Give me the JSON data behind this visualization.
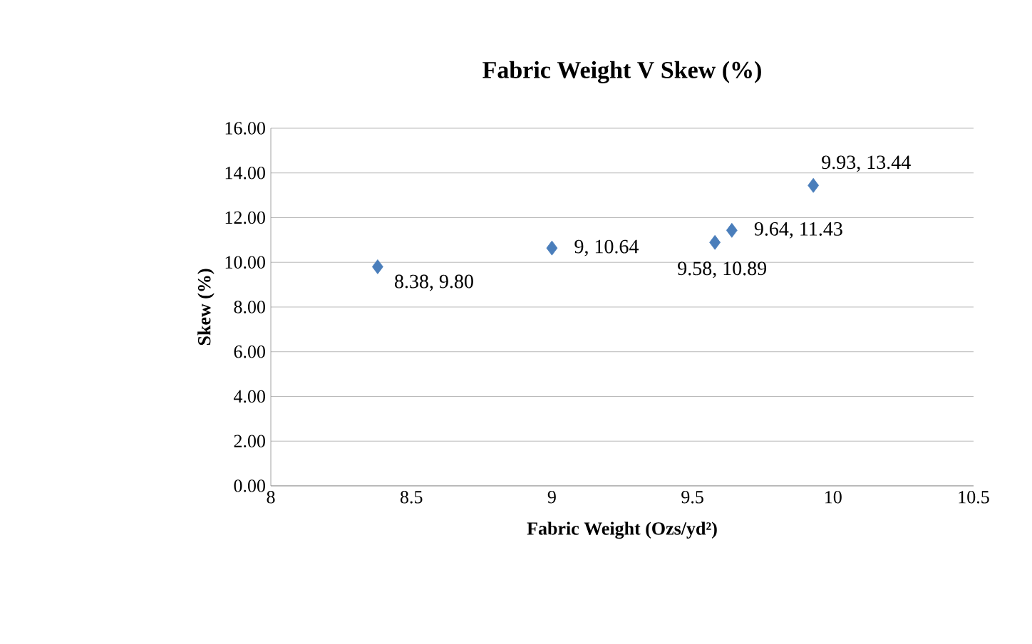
{
  "chart_data": {
    "type": "scatter",
    "title": "Fabric Weight V Skew (%)",
    "xlabel": "Fabric Weight (Ozs/yd²)",
    "ylabel": "Skew (%)",
    "x": [
      8.38,
      9,
      9.58,
      9.64,
      9.93
    ],
    "values": [
      9.8,
      10.64,
      10.89,
      11.43,
      13.44
    ],
    "value_labels": [
      "8.38, 9.80",
      "9, 10.64",
      "9.58, 10.89",
      "9.64, 11.43",
      "9.93, 13.44"
    ],
    "color": "#4a7ebb",
    "marker": "diamond",
    "grid": "y",
    "xlim": [
      8,
      10.5
    ],
    "xticks": [
      8,
      8.5,
      9,
      9.5,
      10,
      10.5
    ],
    "ylim": [
      0,
      16
    ],
    "yticks": [
      {
        "value": 0,
        "label": "0.00"
      },
      {
        "value": 2,
        "label": "2.00"
      },
      {
        "value": 4,
        "label": "4.00"
      },
      {
        "value": 6,
        "label": "6.00"
      },
      {
        "value": 8,
        "label": "8.00"
      },
      {
        "value": 10,
        "label": "10.00"
      },
      {
        "value": 12,
        "label": "12.00"
      },
      {
        "value": 14,
        "label": "14.00"
      },
      {
        "value": 16,
        "label": "16.00"
      }
    ]
  }
}
